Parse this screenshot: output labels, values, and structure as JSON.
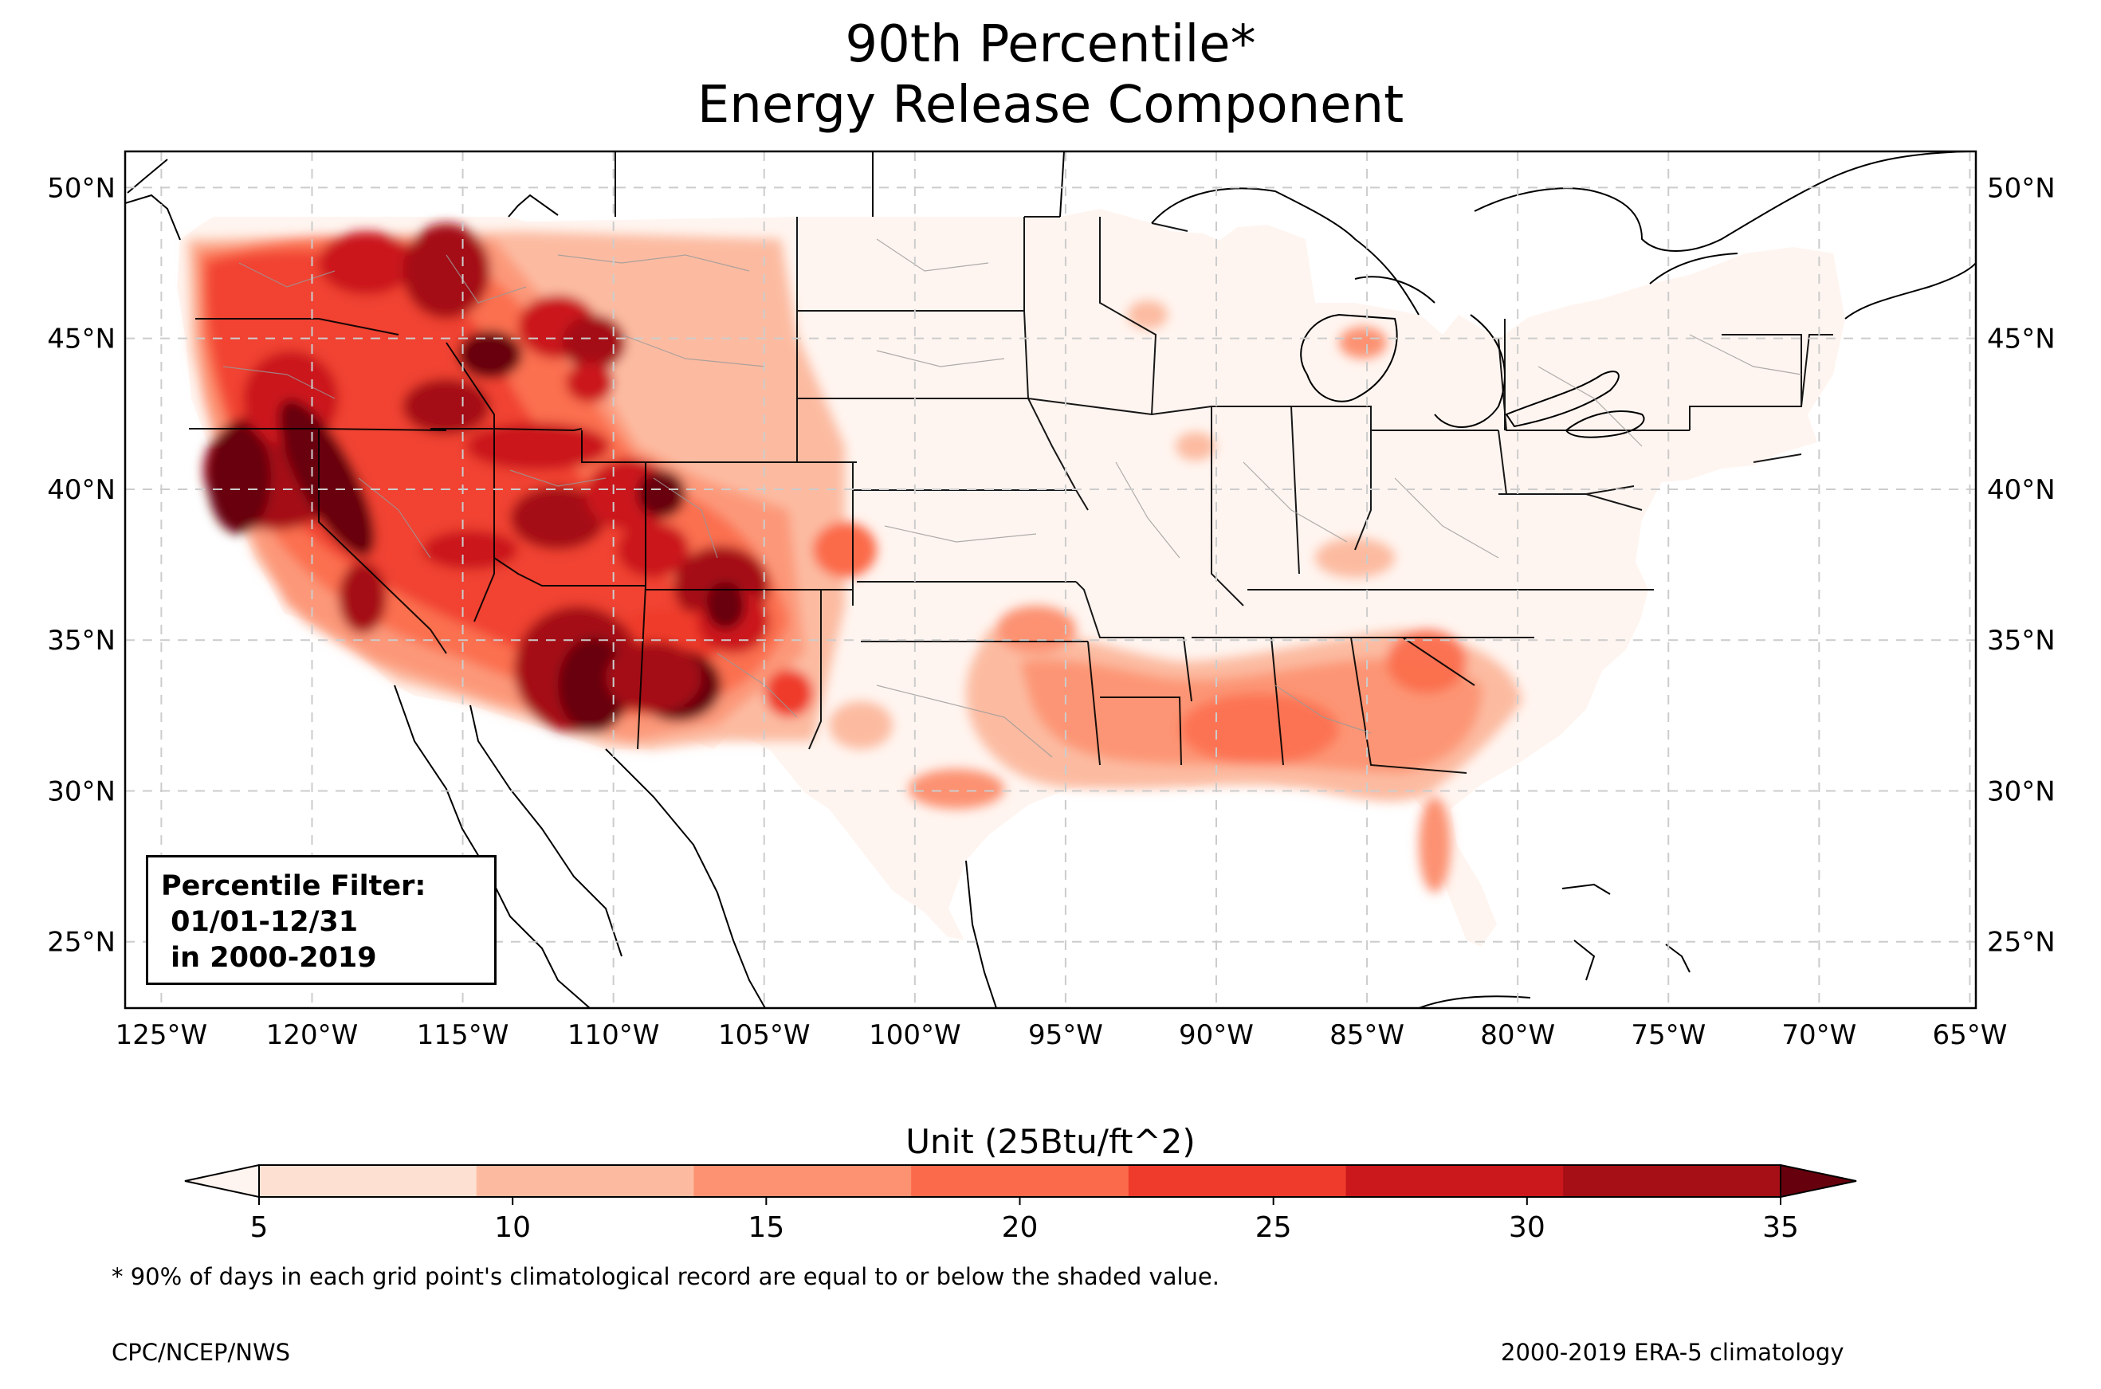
{
  "title": {
    "line1": "90th Percentile*",
    "line2": "Energy Release Component"
  },
  "map": {
    "lat_labels": [
      "50°N",
      "45°N",
      "40°N",
      "35°N",
      "30°N",
      "25°N"
    ],
    "lon_labels": [
      "125°W",
      "120°W",
      "115°W",
      "110°W",
      "105°W",
      "100°W",
      "95°W",
      "90°W",
      "85°W",
      "80°W",
      "75°W",
      "70°W",
      "65°W"
    ],
    "lat_values": [
      50,
      45,
      40,
      35,
      30,
      25
    ],
    "lon_values": [
      -125,
      -120,
      -115,
      -110,
      -105,
      -100,
      -95,
      -90,
      -85,
      -80,
      -75,
      -70,
      -65
    ],
    "extent": {
      "lon_min": -126.2,
      "lon_max": -64.8,
      "lat_min": 22.8,
      "lat_max": 51.2
    },
    "gridlines": true,
    "variable": "90th percentile Energy Release Component",
    "filter_box": {
      "line1": "Percentile Filter:",
      "line2": " 01/01-12/31",
      "line3": " in 2000-2019"
    }
  },
  "colorbar": {
    "title": "Unit (25Btu/ft^2)",
    "ticks": [
      "5",
      "10",
      "15",
      "20",
      "25",
      "30",
      "35"
    ],
    "tick_values": [
      5,
      10,
      15,
      20,
      25,
      30,
      35
    ],
    "colors": [
      "#fee0d2",
      "#fcbba1",
      "#fc9272",
      "#fb6a4a",
      "#ef3b2c",
      "#cb181d",
      "#a50f15"
    ],
    "under_color": "#fff5f0",
    "over_color": "#67000d",
    "extend": "both"
  },
  "footnote": "* 90% of days in each grid point's climatological record are equal to or below the shaded value.",
  "credit_left": "CPC/NCEP/NWS",
  "credit_right": "2000-2019 ERA-5 climatology"
}
